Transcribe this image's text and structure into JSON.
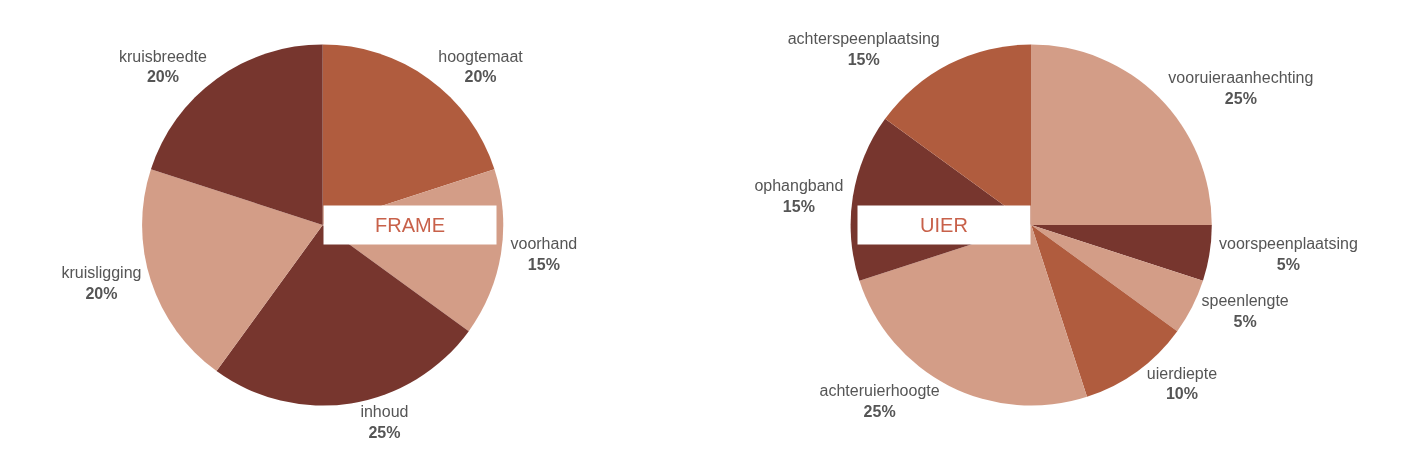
{
  "chart_data": [
    {
      "type": "pie",
      "title": "FRAME",
      "categories": [
        "hoogtemaat",
        "voorhand",
        "inhoud",
        "kruisligging",
        "kruisbreedte"
      ],
      "values": [
        20,
        15,
        25,
        20,
        20
      ],
      "value_labels": [
        "20%",
        "15%",
        "25%",
        "20%",
        "20%"
      ],
      "colors": [
        "#b05c3e",
        "#d39d87",
        "#77362e",
        "#d39d87",
        "#77362e"
      ],
      "legend": false
    },
    {
      "type": "pie",
      "title": "UIER",
      "categories": [
        "vooruieraanhechting",
        "voorspeenplaatsing",
        "speenlengte",
        "uierdiepte",
        "achteruierhoogte",
        "ophangband",
        "achterspeenplaatsing"
      ],
      "values": [
        25,
        5,
        5,
        10,
        25,
        15,
        15
      ],
      "value_labels": [
        "25%",
        "5%",
        "5%",
        "10%",
        "25%",
        "15%",
        "15%"
      ],
      "colors": [
        "#d39d87",
        "#77362e",
        "#d39d87",
        "#b05c3e",
        "#d39d87",
        "#77362e",
        "#b05c3e"
      ],
      "legend": false
    }
  ]
}
